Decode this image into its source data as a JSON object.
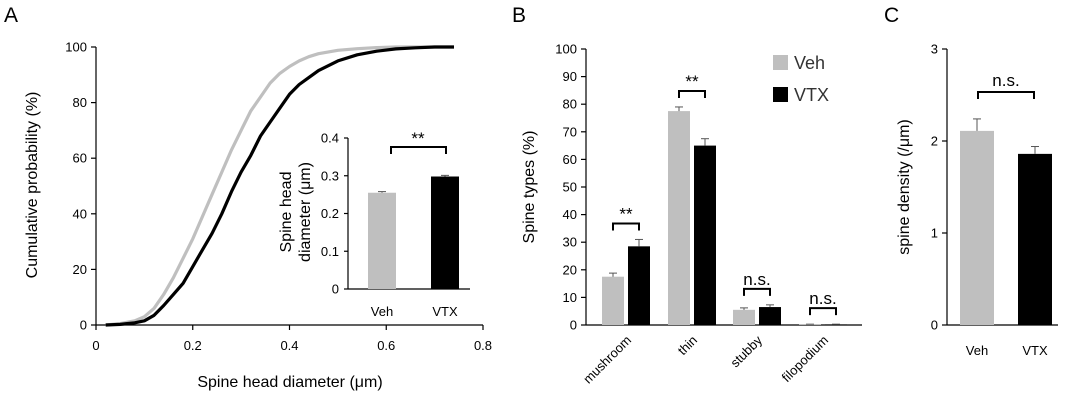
{
  "colors": {
    "veh": "#bfbfbf",
    "vtx": "#000000",
    "axis": "#000000",
    "legend_text": "#333333"
  },
  "chart_data": [
    {
      "panel": "A",
      "type": "line",
      "xlabel": "Spine head diameter (μm)",
      "ylabel": "Cumulative probability (%)",
      "xlim": [
        0,
        0.8
      ],
      "ylim": [
        0,
        100
      ],
      "xticks": [
        "0",
        "0.2",
        "0.4",
        "0.6",
        "0.8"
      ],
      "yticks": [
        "0",
        "20",
        "40",
        "60",
        "80",
        "100"
      ],
      "series": [
        {
          "name": "Veh",
          "x": [
            0.02,
            0.05,
            0.08,
            0.1,
            0.12,
            0.14,
            0.16,
            0.18,
            0.2,
            0.22,
            0.24,
            0.26,
            0.28,
            0.3,
            0.32,
            0.34,
            0.36,
            0.38,
            0.4,
            0.42,
            0.44,
            0.46,
            0.5,
            0.54,
            0.58,
            0.62,
            0.66,
            0.7,
            0.74
          ],
          "y": [
            0,
            0.5,
            1.5,
            3,
            6,
            11,
            17,
            24,
            31,
            39,
            47,
            55,
            63,
            70,
            77,
            82,
            87,
            90.5,
            93,
            95,
            96.5,
            97.6,
            98.8,
            99.4,
            99.8,
            100,
            100,
            100,
            100
          ]
        },
        {
          "name": "VTX",
          "x": [
            0.02,
            0.05,
            0.08,
            0.1,
            0.12,
            0.14,
            0.16,
            0.18,
            0.2,
            0.22,
            0.24,
            0.26,
            0.28,
            0.3,
            0.32,
            0.34,
            0.36,
            0.38,
            0.4,
            0.42,
            0.44,
            0.46,
            0.5,
            0.54,
            0.58,
            0.62,
            0.66,
            0.7,
            0.74
          ],
          "y": [
            0,
            0.2,
            0.8,
            1.5,
            3.5,
            7,
            11,
            15,
            21,
            27,
            33,
            40,
            48,
            55,
            61,
            68,
            73,
            78,
            83,
            86.5,
            89,
            91.5,
            95,
            97.2,
            98.5,
            99.3,
            99.7,
            100,
            100
          ]
        }
      ],
      "inset": {
        "type": "bar",
        "categories": [
          "Veh",
          "VTX"
        ],
        "values": [
          0.255,
          0.298
        ],
        "errors": [
          0.003,
          0.003
        ],
        "ylabel_line1": "Spine head",
        "ylabel_line2": "diameter (μm)",
        "ylim": [
          0,
          0.4
        ],
        "yticks": [
          "0",
          "0.1",
          "0.2",
          "0.3",
          "0.4"
        ],
        "significance": "**"
      }
    },
    {
      "panel": "B",
      "type": "bar",
      "ylabel": "Spine types (%)",
      "ylim": [
        0,
        100
      ],
      "yticks": [
        "0",
        "10",
        "20",
        "30",
        "40",
        "50",
        "60",
        "70",
        "80",
        "90",
        "100"
      ],
      "categories": [
        "mushroom",
        "thin",
        "stubby",
        "filopodium"
      ],
      "series": [
        {
          "name": "Veh",
          "values": [
            17.5,
            77.5,
            5.5,
            0.2
          ],
          "errors": [
            1.3,
            1.5,
            0.7,
            0.1
          ]
        },
        {
          "name": "VTX",
          "values": [
            28.5,
            65,
            6.5,
            0.2
          ],
          "errors": [
            2.5,
            2.5,
            0.8,
            0.1
          ]
        }
      ],
      "significance": [
        "**",
        "**",
        "n.s.",
        "n.s."
      ],
      "legend": [
        "Veh",
        "VTX"
      ]
    },
    {
      "panel": "C",
      "type": "bar",
      "ylabel": "spine density (/μm)",
      "ylim": [
        0,
        3
      ],
      "yticks": [
        "0",
        "1",
        "2",
        "3"
      ],
      "categories": [
        "Veh",
        "VTX"
      ],
      "values": [
        2.11,
        1.86
      ],
      "errors": [
        0.13,
        0.08
      ],
      "significance": "n.s."
    }
  ]
}
